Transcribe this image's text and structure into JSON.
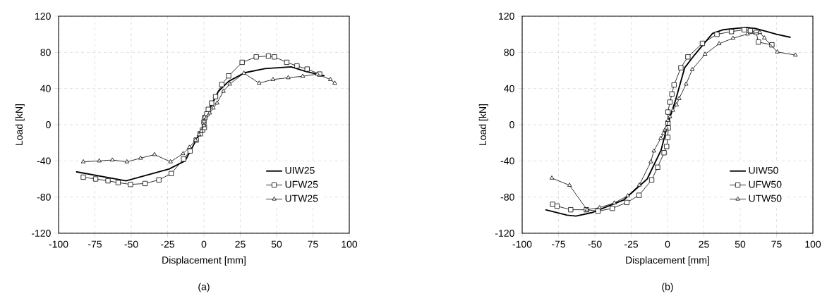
{
  "chart_data": [
    {
      "type": "line",
      "title": "(a)",
      "xlabel": "Displacement [mm]",
      "ylabel": "Load [kN]",
      "xlim": [
        -100,
        100
      ],
      "ylim": [
        -120,
        120
      ],
      "xticks": [
        -100,
        -75,
        -50,
        -25,
        0,
        25,
        50,
        75,
        100
      ],
      "yticks": [
        -120,
        -80,
        -40,
        0,
        40,
        80,
        120
      ],
      "grid": true,
      "legend": "bottom right",
      "series": [
        {
          "name": "UIW25",
          "color": "#000000",
          "marker": "none",
          "x": [
            -88,
            -53.6,
            -24,
            -13,
            -6,
            0,
            5,
            10,
            17,
            28,
            42,
            60,
            70,
            83
          ],
          "values": [
            -52,
            -62,
            -49,
            -40,
            -19,
            0,
            21,
            37,
            48,
            57.5,
            62,
            64,
            59,
            54
          ]
        },
        {
          "name": "UFW25",
          "color": "#000000",
          "marker": "square",
          "x": [
            -83,
            -74.5,
            -66,
            -59,
            -50.5,
            -40.5,
            -31,
            -22.5,
            -14,
            -9.5,
            -5.3,
            -2.6,
            -1,
            0.3,
            0,
            0.6,
            2,
            3,
            5.3,
            8,
            12.3,
            17,
            26.3,
            36,
            44.4,
            48.5,
            57,
            64,
            71,
            79.6
          ],
          "values": [
            -58,
            -60,
            -62,
            -64,
            -66,
            -65,
            -61,
            -54,
            -38,
            -29,
            -17,
            -10,
            -6,
            -3,
            3,
            8,
            12,
            17,
            24,
            31,
            44.5,
            54,
            69,
            75,
            76,
            75,
            69,
            65,
            61.5,
            56
          ]
        },
        {
          "name": "UTW25",
          "color": "#000000",
          "marker": "triangle",
          "x": [
            -83,
            -72,
            -63,
            -53,
            -43.6,
            -34,
            -23,
            -14.4,
            -10,
            -5.8,
            -3.4,
            -1.8,
            0,
            0,
            0.3,
            4,
            6.5,
            9,
            13.4,
            17.8,
            27.5,
            38,
            47.5,
            58,
            68,
            78,
            87,
            90
          ],
          "values": [
            -41,
            -40,
            -39,
            -41,
            -37,
            -33,
            -41,
            -32,
            -25,
            -17,
            -11,
            -7,
            -1,
            3.4,
            8.6,
            13,
            18.5,
            24,
            37,
            45,
            57,
            46,
            50,
            52,
            53.6,
            56,
            50,
            46
          ]
        }
      ]
    },
    {
      "type": "line",
      "title": "(b)",
      "xlabel": "Displacement [mm]",
      "ylabel": "Load [kN]",
      "xlim": [
        -100,
        100
      ],
      "ylim": [
        -120,
        120
      ],
      "xticks": [
        -100,
        -75,
        -50,
        -25,
        0,
        25,
        50,
        75,
        100
      ],
      "yticks": [
        -120,
        -80,
        -40,
        0,
        40,
        80,
        120
      ],
      "grid": true,
      "legend": "bottom right",
      "series": [
        {
          "name": "UIW50",
          "color": "#000000",
          "marker": "none",
          "x": [
            -84,
            -69,
            -63,
            -51.5,
            -30,
            -14,
            -4.4,
            0,
            5.3,
            11.8,
            18,
            31,
            38,
            54,
            60.4,
            68.5,
            75,
            84.7
          ],
          "values": [
            -94,
            -100,
            -101,
            -97,
            -83,
            -60,
            -28,
            0,
            26,
            63,
            76,
            101,
            105,
            107.6,
            106.5,
            103,
            100,
            96.6
          ]
        },
        {
          "name": "UFW50",
          "color": "#000000",
          "marker": "square",
          "x": [
            -79,
            -76,
            -66.6,
            -55.8,
            -47.8,
            -38,
            -28,
            -19.6,
            -10.9,
            -6.8,
            -2.4,
            -0.6,
            0.2,
            0.5,
            0.3,
            0.3,
            1.6,
            3,
            4.5,
            9.2,
            14,
            24,
            34,
            44,
            52.8,
            57,
            61,
            62.5,
            71.8
          ],
          "values": [
            -88,
            -90,
            -94,
            -94,
            -95.6,
            -92.5,
            -86,
            -78,
            -61,
            -47,
            -31,
            -24,
            -14,
            -3.6,
            2,
            14,
            25,
            34,
            44,
            63,
            75,
            90,
            100,
            103,
            105,
            104,
            102,
            91.4,
            88.3
          ]
        },
        {
          "name": "UTW50",
          "color": "#000000",
          "marker": "triangle",
          "x": [
            -79.6,
            -67.4,
            -55.4,
            -46.7,
            -36.6,
            -27.4,
            -19.4,
            -11.5,
            -9.4,
            -4.7,
            -2.8,
            -1.8,
            -0.8,
            0.3,
            1.6,
            3.7,
            6.2,
            8,
            12.8,
            17,
            25.8,
            35.5,
            45,
            55,
            63.5,
            66.6,
            75.5,
            88
          ],
          "values": [
            -59,
            -67,
            -94,
            -91.7,
            -86.5,
            -78.6,
            -66.7,
            -41,
            -29,
            -15,
            -9.6,
            -5.7,
            -3.6,
            4.7,
            9,
            16,
            22,
            29,
            45,
            61,
            78,
            89.6,
            95.6,
            100.3,
            102,
            96,
            80.5,
            77
          ]
        }
      ]
    }
  ]
}
